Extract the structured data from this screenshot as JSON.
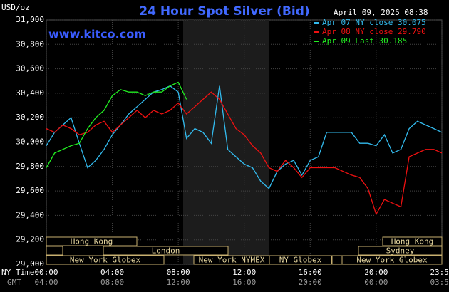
{
  "chart_data": {
    "type": "line",
    "title": "24 Hour Spot Silver (Bid)",
    "subtitle": "April 09, 2025 08:38",
    "ylabel": "USD/oz",
    "annotation": "www.kitco.com",
    "xlabel": "NY Time",
    "x2label": "GMT",
    "x": [
      0,
      0.5,
      1,
      1.5,
      2,
      2.5,
      3,
      3.5,
      4,
      4.5,
      5,
      5.5,
      6,
      6.5,
      7,
      7.5,
      8,
      8.5,
      9,
      9.5,
      10,
      10.5,
      11,
      11.5,
      12,
      12.5,
      13,
      13.5,
      14,
      14.5,
      15,
      15.5,
      16,
      16.5,
      17,
      17.5,
      18,
      18.5,
      19,
      19.5,
      20,
      20.5,
      21,
      21.5,
      22,
      22.5,
      23,
      23.5,
      23.983
    ],
    "xlim": [
      0,
      23.983
    ],
    "xticks": [
      {
        "value": 0,
        "label": "00:00"
      },
      {
        "value": 4,
        "label": "04:00"
      },
      {
        "value": 8,
        "label": "08:00"
      },
      {
        "value": 12,
        "label": "12:00"
      },
      {
        "value": 16,
        "label": "16:00"
      },
      {
        "value": 20,
        "label": "20:00"
      },
      {
        "value": 23.983,
        "label": "23:59"
      }
    ],
    "x2ticks": [
      {
        "value": 0,
        "label": "04:00"
      },
      {
        "value": 4,
        "label": "08:00"
      },
      {
        "value": 8,
        "label": "12:00"
      },
      {
        "value": 12,
        "label": "16:00"
      },
      {
        "value": 16,
        "label": "20:00"
      },
      {
        "value": 20,
        "label": "00:00"
      },
      {
        "value": 23.983,
        "label": "03:59"
      }
    ],
    "ylim": [
      29,
      31
    ],
    "yticks": [
      {
        "value": 29,
        "label": "29,000"
      },
      {
        "value": 29.2,
        "label": "29,200"
      },
      {
        "value": 29.4,
        "label": "29,400"
      },
      {
        "value": 29.6,
        "label": "29,600"
      },
      {
        "value": 29.8,
        "label": "29,800"
      },
      {
        "value": 30,
        "label": "30,000"
      },
      {
        "value": 30.2,
        "label": "30,200"
      },
      {
        "value": 30.4,
        "label": "30,400"
      },
      {
        "value": 30.6,
        "label": "30,600"
      },
      {
        "value": 30.8,
        "label": "30,800"
      },
      {
        "value": 31,
        "label": "31,000"
      }
    ],
    "grid": true,
    "legend": "top-right",
    "sessions": [
      "Hong Kong",
      "London",
      "New York Globex",
      "New York NYMEX",
      "NY Globex",
      "Sydney",
      "Hong Kong",
      "New York Globex"
    ],
    "series": [
      {
        "name": "Apr 07 NY close 30.075",
        "color": "#33bbee",
        "values": [
          29.97,
          30.08,
          30.14,
          30.2,
          29.99,
          29.79,
          29.85,
          29.94,
          30.06,
          30.14,
          30.23,
          30.29,
          30.35,
          30.41,
          30.43,
          30.46,
          30.41,
          30.03,
          30.11,
          30.08,
          29.99,
          30.46,
          29.94,
          29.88,
          29.82,
          29.79,
          29.68,
          29.62,
          29.76,
          29.82,
          29.85,
          29.73,
          29.85,
          29.88,
          30.08,
          30.08,
          30.08,
          30.08,
          29.99,
          29.99,
          29.97,
          30.06,
          29.91,
          29.94,
          30.11,
          30.17,
          30.14,
          30.11,
          30.08
        ]
      },
      {
        "name": "Apr 08 NY close 29.790",
        "color": "#ee1111",
        "values": [
          30.11,
          30.08,
          30.14,
          30.11,
          30.06,
          30.08,
          30.14,
          30.17,
          30.08,
          30.14,
          30.2,
          30.26,
          30.2,
          30.26,
          30.23,
          30.26,
          30.32,
          30.23,
          30.29,
          30.35,
          30.41,
          30.35,
          30.23,
          30.11,
          30.06,
          29.97,
          29.91,
          29.79,
          29.76,
          29.85,
          29.79,
          29.71,
          29.79,
          29.79,
          29.79,
          29.79,
          29.76,
          29.73,
          29.71,
          29.62,
          29.41,
          29.53,
          29.5,
          29.47,
          29.88,
          29.91,
          29.94,
          29.94,
          29.91
        ]
      },
      {
        "name": "Apr 09 Last 30.185",
        "color": "#22ee22",
        "values": [
          29.79,
          29.91,
          29.94,
          29.97,
          29.99,
          30.11,
          30.2,
          30.26,
          30.38,
          30.43,
          30.41,
          30.41,
          30.38,
          30.41,
          30.41,
          30.46,
          30.49,
          30.35,
          null,
          null,
          null,
          null,
          null,
          null,
          null,
          null,
          null,
          null,
          null,
          null,
          null,
          null,
          null,
          null,
          null,
          null,
          null,
          null,
          null,
          null,
          null,
          null,
          null,
          null,
          null,
          null,
          null,
          null,
          null
        ]
      }
    ]
  }
}
